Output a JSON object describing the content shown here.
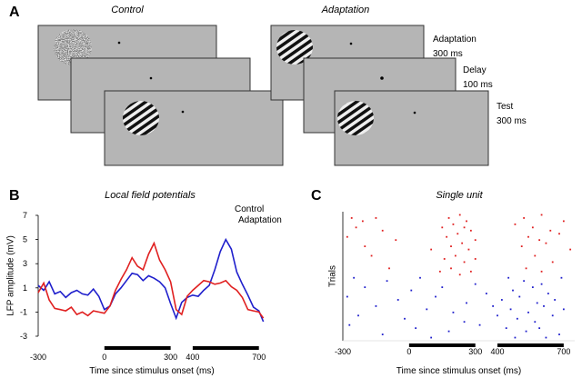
{
  "panel_labels": [
    "A",
    "B",
    "C"
  ],
  "diagram": {
    "conditions": [
      "Control",
      "Adaptation"
    ],
    "steps": [
      {
        "name": "Adaptation",
        "duration": "300 ms"
      },
      {
        "name": "Delay",
        "duration": "100 ms"
      },
      {
        "name": "Test",
        "duration": "300 ms"
      }
    ]
  },
  "chart_data": [
    {
      "type": "line",
      "title": "Local field potentials",
      "x_label": "Time since stimulus onset (ms)",
      "y_label": "LFP amplitude (mV)",
      "x": [
        -300,
        -275,
        -250,
        -225,
        -200,
        -175,
        -150,
        -125,
        -100,
        -75,
        -50,
        -25,
        0,
        25,
        50,
        75,
        100,
        125,
        150,
        175,
        200,
        225,
        250,
        275,
        300,
        325,
        350,
        375,
        400,
        425,
        450,
        475,
        500,
        525,
        550,
        575,
        600,
        625,
        650,
        675,
        700,
        720
      ],
      "series": [
        {
          "name": "Control",
          "color": "#1f1fcc",
          "values": [
            1.2,
            0.8,
            1.5,
            0.5,
            0.7,
            0.2,
            0.6,
            0.8,
            0.5,
            0.4,
            0.9,
            0.3,
            -0.8,
            -0.5,
            0.5,
            1.0,
            1.6,
            2.2,
            2.1,
            1.6,
            2.0,
            1.8,
            1.5,
            1.0,
            -0.3,
            -1.5,
            -0.2,
            0.2,
            0.4,
            0.3,
            0.8,
            1.2,
            2.5,
            4.0,
            5.0,
            4.2,
            2.3,
            1.3,
            0.4,
            -0.6,
            -0.9,
            -1.8
          ]
        },
        {
          "name": "Adaptation",
          "color": "#e02020",
          "values": [
            0.6,
            1.4,
            0.0,
            -0.7,
            -0.8,
            -0.9,
            -0.6,
            -1.2,
            -1.0,
            -1.3,
            -0.9,
            -1.0,
            -1.1,
            -0.5,
            0.8,
            1.7,
            2.5,
            3.5,
            2.8,
            2.5,
            3.8,
            4.7,
            3.3,
            2.5,
            1.5,
            -0.8,
            -1.2,
            0.3,
            0.8,
            1.2,
            1.6,
            1.5,
            1.3,
            1.4,
            1.6,
            1.1,
            0.8,
            0.2,
            -0.8,
            -0.9,
            -1.0,
            -1.5
          ]
        }
      ],
      "xlim": [
        -300,
        730
      ],
      "xticks": [
        -300,
        0,
        300,
        400,
        700
      ],
      "ylim": [
        -3,
        7
      ],
      "yticks": [
        -3,
        -1,
        1,
        3,
        5,
        7
      ],
      "stimulus_periods": [
        [
          0,
          300
        ],
        [
          400,
          700
        ]
      ],
      "legend": "top-right"
    },
    {
      "type": "scatter",
      "title": "Single unit",
      "x_label": "Time since stimulus onset (ms)",
      "y_label": "Trials",
      "series": [
        {
          "color": "#e02020",
          "x": [
            -260,
            -210,
            -150,
            180,
            230,
            260,
            520,
            600,
            700,
            -240,
            -120,
            150,
            200,
            280,
            250,
            480,
            560,
            640,
            -280,
            -60,
            170,
            220,
            300,
            540,
            590,
            680,
            -200,
            100,
            190,
            240,
            270,
            510,
            620,
            730,
            -170,
            160,
            210,
            250,
            300,
            570,
            650,
            -90,
            140,
            190,
            230,
            280,
            530,
            600
          ],
          "values": [
            39,
            38,
            39,
            39,
            40,
            38,
            39,
            40,
            38,
            36,
            35,
            36,
            37,
            35,
            36,
            37,
            36,
            35,
            33,
            32,
            33,
            34,
            32,
            33,
            32,
            34,
            30,
            29,
            30,
            31,
            29,
            30,
            31,
            29,
            27,
            26,
            27,
            25,
            26,
            27,
            25,
            23,
            22,
            23,
            21,
            22,
            23,
            22
          ]
        },
        {
          "color": "#1f1fcc",
          "x": [
            -250,
            -100,
            50,
            300,
            450,
            520,
            600,
            690,
            -200,
            10,
            150,
            350,
            470,
            560,
            630,
            -280,
            -50,
            120,
            260,
            420,
            500,
            580,
            660,
            -150,
            80,
            200,
            380,
            460,
            540,
            610,
            700,
            -230,
            -20,
            250,
            400,
            490,
            570,
            650,
            -270,
            30,
            180,
            320,
            440,
            530,
            590,
            680,
            -120,
            100,
            480,
            620
          ],
          "values": [
            20,
            19,
            20,
            18,
            20,
            19,
            18,
            20,
            17,
            16,
            17,
            15,
            16,
            17,
            15,
            14,
            13,
            14,
            12,
            13,
            14,
            12,
            13,
            11,
            10,
            9,
            11,
            10,
            9,
            11,
            10,
            8,
            7,
            6,
            8,
            7,
            6,
            8,
            5,
            4,
            3,
            5,
            4,
            3,
            4,
            2,
            2,
            1,
            1,
            1
          ]
        }
      ],
      "xlim": [
        -300,
        750
      ],
      "xticks": [
        -300,
        0,
        300,
        400,
        700
      ],
      "ylim": [
        0,
        41
      ],
      "stimulus_periods": [
        [
          0,
          300
        ],
        [
          400,
          700
        ]
      ]
    }
  ]
}
